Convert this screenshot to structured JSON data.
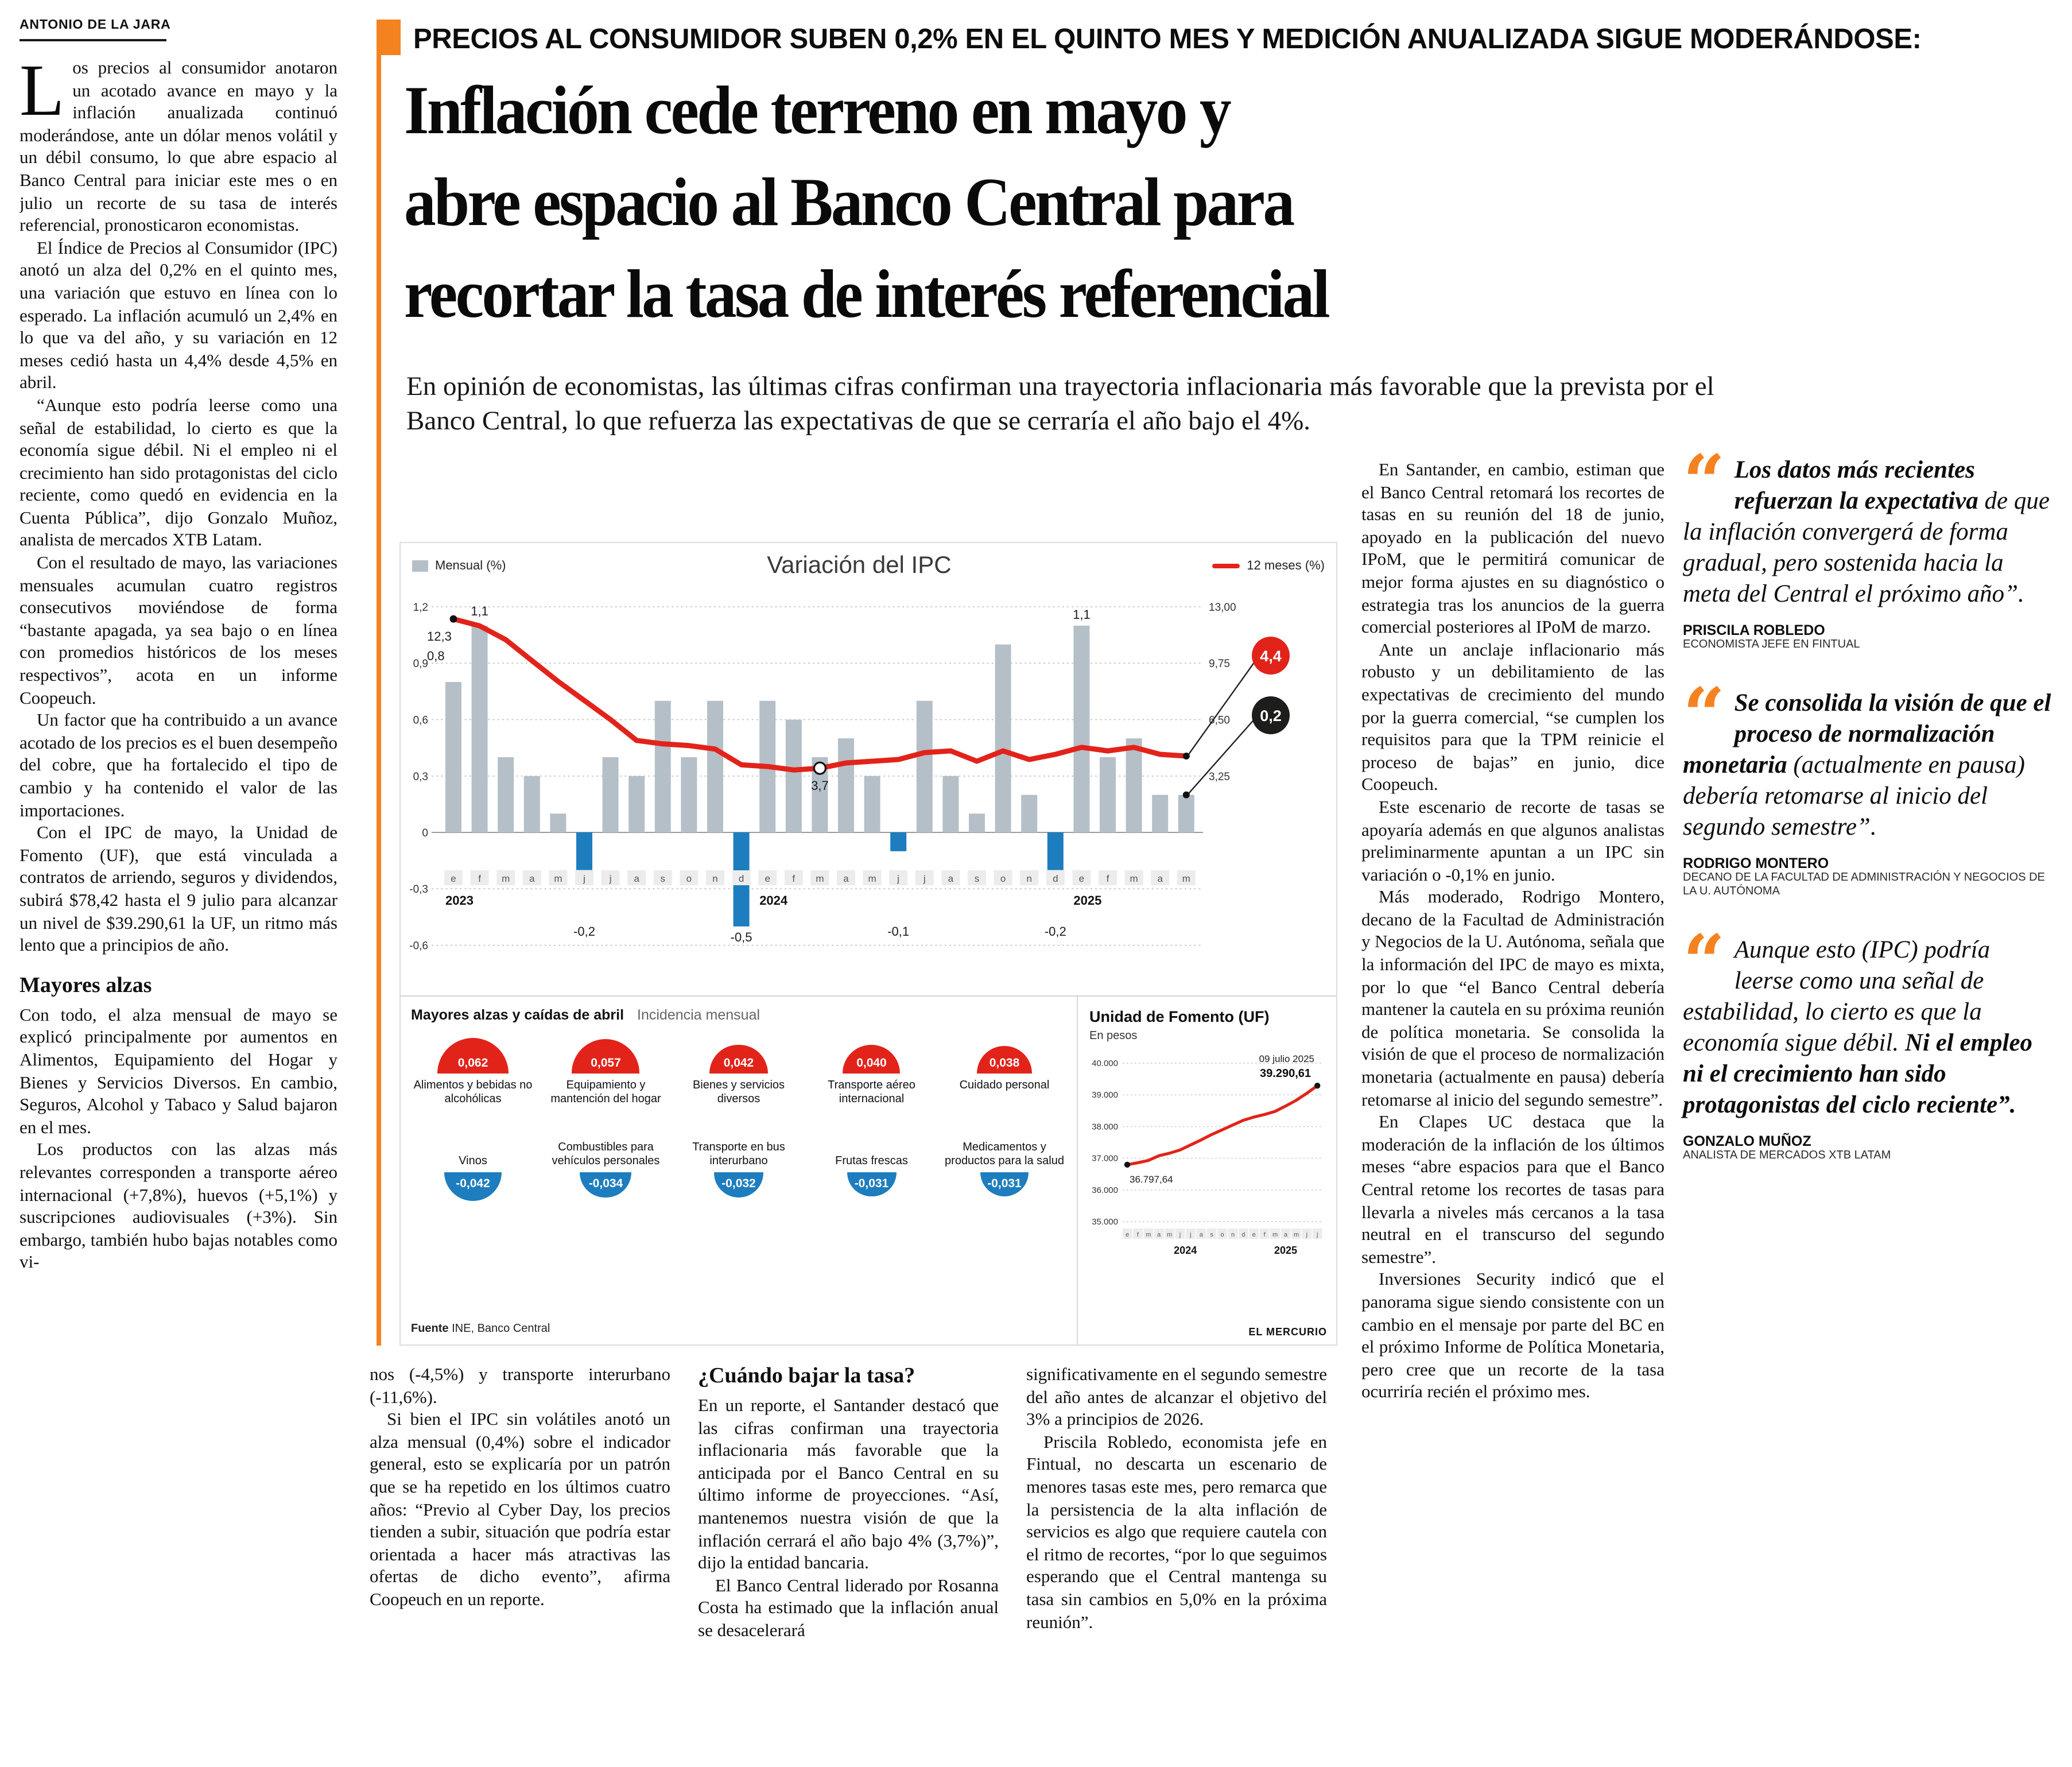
{
  "byline": "ANTONIO DE LA JARA",
  "kicker": "PRECIOS AL CONSUMIDOR SUBEN 0,2% EN EL QUINTO MES Y MEDICIÓN ANUALIZADA SIGUE MODERÁNDOSE:",
  "headline_lines": [
    "Inflación cede terreno en mayo y",
    "abre espacio al Banco Central para",
    "recortar la tasa de interés referencial"
  ],
  "dek": "En opinión de economistas, las últimas cifras confirman una trayectoria inflacionaria más favorable que la prevista por el Banco Central, lo que refuerza las expectativas de que se cerraría el año bajo el 4%.",
  "colors": {
    "accent_orange": "#f58220",
    "chart_red": "#e2231a",
    "bar_gray": "#b5bfc8",
    "negative_blue": "#1d7dbe",
    "badge_black": "#1d1d1b"
  },
  "columns": {
    "col1": [
      {
        "type": "para",
        "dropcap": "L",
        "noindent": true,
        "text": "os precios al consumidor anotaron un acotado avance en mayo y la inflación anualizada continuó moderándose, ante un dólar menos volátil y un débil consumo, lo que abre espacio al Banco Central para iniciar este mes o en julio un recorte de su tasa de interés referencial, pronosticaron economistas."
      },
      {
        "type": "para",
        "text": "El Índice de Precios al Consumidor (IPC) anotó un alza del 0,2% en el quinto mes, una variación que estuvo en línea con lo esperado. La inflación acumuló un 2,4% en lo que va del año, y su variación en 12 meses cedió hasta un 4,4% desde 4,5% en abril."
      },
      {
        "type": "para",
        "text": "“Aunque esto podría leerse como una señal de estabilidad, lo cierto es que la economía sigue débil. Ni el empleo ni el crecimiento han sido protagonistas del ciclo reciente, como quedó en evidencia en la Cuenta Pública”, dijo Gonzalo Muñoz, analista de mercados XTB Latam."
      },
      {
        "type": "para",
        "text": "Con el resultado de mayo, las variaciones mensuales acumulan cuatro registros consecutivos moviéndose de forma “bastante apagada, ya sea bajo o en línea con promedios históricos de los meses respectivos”, acota en un informe Coopeuch."
      },
      {
        "type": "para",
        "text": "Un factor que ha contribuido a un avance acotado de los precios es el buen desempeño del cobre, que ha fortalecido el tipo de cambio y ha contenido el valor de las importaciones."
      },
      {
        "type": "para",
        "text": "Con el IPC de mayo, la Unidad de Fomento (UF), que está vinculada a contratos de arriendo, seguros y dividendos, subirá $78,42 hasta el 9 julio para alcanzar un nivel de $39.290,61 la UF, un ritmo más lento que a principios de año."
      },
      {
        "type": "subhead",
        "text": "Mayores alzas"
      },
      {
        "type": "para",
        "noindent": true,
        "text": "Con todo, el alza mensual de mayo se explicó principalmente por aumentos en Alimentos, Equipamiento del Hogar y Bienes y Servicios Diversos. En cambio, Seguros, Alcohol y Tabaco y Salud bajaron en el mes."
      },
      {
        "type": "para",
        "text": "Los productos con las alzas más relevantes corresponden a transporte aéreo internacional (+7,8%), huevos (+5,1%) y suscripciones audiovisuales (+3%). Sin embargo, también hubo bajas notables como vi-"
      }
    ],
    "colB": [
      {
        "type": "para",
        "noindent": true,
        "text": "nos (-4,5%) y transporte interurbano (-11,6%)."
      },
      {
        "type": "para",
        "text": "Si bien el IPC sin volátiles anotó un alza mensual (0,4%) sobre el indicador general, esto se explicaría por un patrón que se ha repetido en los últimos cuatro años: “Previo al Cyber Day, los precios tienden a subir, situación que podría estar orientada a hacer más atractivas las ofertas de dicho evento”, afirma Coopeuch en un reporte."
      }
    ],
    "colC": [
      {
        "type": "subhead",
        "text": "¿Cuándo bajar la tasa?"
      },
      {
        "type": "para",
        "noindent": true,
        "text": "En un reporte, el Santander destacó que las cifras confirman una trayectoria inflacionaria más favorable que la anticipada por el Banco Central en su último informe de proyecciones. “Así, mantenemos nuestra visión de que la inflación cerrará el año bajo 4% (3,7%)”, dijo la entidad bancaria."
      },
      {
        "type": "para",
        "text": "El Banco Central liderado por Rosanna Costa ha estimado que la inflación anual se desacelerará"
      }
    ],
    "colD": [
      {
        "type": "para",
        "noindent": true,
        "text": "significativamente en el segundo semestre del año antes de alcanzar el objetivo del 3% a principios de 2026."
      },
      {
        "type": "para",
        "text": "Priscila Robledo, economista jefe en Fintual, no descarta un escenario de menores tasas este mes, pero remarca que la persistencia de la alta inflación de servicios es algo que requiere cautela con el ritmo de recortes, “por lo que seguimos esperando que el Central mantenga su tasa sin cambios en 5,0% en la próxima reunión”."
      }
    ],
    "col5": [
      {
        "type": "para",
        "text": "En Santander, en cambio, estiman que el Banco Central retomará los recortes de tasas en su reunión del 18 de junio, apoyado en la publicación del nuevo IPoM, que le permitirá comunicar de mejor forma ajustes en su diagnóstico o estrategia tras los anuncios de la guerra comercial posteriores al IPoM de marzo."
      },
      {
        "type": "para",
        "text": "Ante un anclaje inflacionario más robusto y un debilitamiento de las expectativas de crecimiento del mundo por la guerra comercial, “se cumplen los requisitos para que la TPM reinicie el proceso de bajas” en junio, dice Coopeuch."
      },
      {
        "type": "para",
        "text": "Este escenario de recorte de tasas se apoyaría además en que algunos analistas preliminarmente apuntan a un IPC sin variación o -0,1% en junio."
      },
      {
        "type": "para",
        "text": "Más moderado, Rodrigo Montero, decano de la Facultad de Administración y Negocios de la U. Autónoma, señala que la información del IPC de mayo es mixta, por lo que “el Banco Central debería mantener la cautela en su próxima reunión de política monetaria. Se consolida la visión de que el proceso de normalización monetaria (actualmente en pausa) debería retomarse al inicio del segundo semestre”."
      },
      {
        "type": "para",
        "text": "En Clapes UC destaca que la moderación de la inflación de los últimos meses “abre espacios para que el Banco Central retome los recortes de tasas para llevarla a niveles más cercanos a la tasa neutral en el transcurso del segundo semestre”."
      },
      {
        "type": "para",
        "text": "Inversiones Security indicó que el panorama sigue siendo consistente con un cambio en el mensaje por parte del BC en el próximo Informe de Política Monetaria, pero cree que un recorte de la tasa ocurriría recién el próximo mes."
      }
    ]
  },
  "quotes": [
    {
      "parts": [
        {
          "text": "Los datos más recientes refuerzan la expectativa ",
          "bold": true
        },
        {
          "text": "de que la inflación convergerá de forma gradual, pero sostenida hacia la meta del Central el próximo año”.",
          "bold": false
        }
      ],
      "name": "PRISCILA ROBLEDO",
      "title": "ECONOMISTA JEFE EN FINTUAL"
    },
    {
      "parts": [
        {
          "text": "Se consolida la visión de que el proceso de normalización monetaria ",
          "bold": true
        },
        {
          "text": "(actualmente en pausa) debería retomarse al inicio del segundo semestre”.",
          "bold": false
        }
      ],
      "name": "RODRIGO MONTERO",
      "title": "DECANO DE LA FACULTAD DE ADMINISTRACIÓN Y NEGOCIOS DE LA U. AUTÓNOMA"
    },
    {
      "parts": [
        {
          "text": "Aunque esto (IPC) podría leerse como una señal de estabilidad, lo cierto es que la economía sigue débil. ",
          "bold": false
        },
        {
          "text": "Ni el empleo ni el crecimiento han sido protagonistas del ciclo reciente”.",
          "bold": true
        }
      ],
      "name": "GONZALO MUÑOZ",
      "title": "ANALISTA DE MERCADOS XTB LATAM"
    }
  ],
  "chart_data": [
    {
      "type": "bar",
      "title": "Variación del IPC",
      "legend": [
        {
          "label": "Mensual (%)",
          "color": "#b5bfc8"
        },
        {
          "label": "12 meses (%)",
          "color": "#e2231a"
        }
      ],
      "left_axis": {
        "ticks": [
          "1,2",
          "0,9",
          "0,6",
          "0,3",
          "0",
          "-0,3",
          "-0,6"
        ],
        "min": -0.6,
        "max": 1.2
      },
      "right_axis": {
        "ticks": [
          "13,00",
          "9,75",
          "6,50",
          "3,25"
        ],
        "min": 3.25,
        "max": 13.0
      },
      "months": [
        "e",
        "f",
        "m",
        "a",
        "m",
        "j",
        "j",
        "a",
        "s",
        "o",
        "n",
        "d",
        "e",
        "f",
        "m",
        "a",
        "m",
        "j",
        "j",
        "a",
        "s",
        "o",
        "n",
        "d",
        "e",
        "f",
        "m",
        "a",
        "m"
      ],
      "years": [
        {
          "label": "2023",
          "start": 0
        },
        {
          "label": "2024",
          "start": 12
        },
        {
          "label": "2025",
          "start": 24
        }
      ],
      "monthly": [
        0.8,
        1.1,
        0.4,
        0.3,
        0.1,
        -0.2,
        0.4,
        0.3,
        0.7,
        0.4,
        0.7,
        -0.5,
        0.7,
        0.6,
        0.4,
        0.5,
        0.3,
        -0.1,
        0.7,
        0.3,
        0.1,
        1.0,
        0.2,
        -0.2,
        1.1,
        0.4,
        0.5,
        0.2,
        0.2
      ],
      "twelve_month": [
        12.3,
        11.9,
        11.1,
        9.9,
        8.7,
        7.6,
        6.5,
        5.3,
        5.1,
        5.0,
        4.8,
        3.9,
        3.8,
        3.6,
        3.7,
        4.0,
        4.1,
        4.2,
        4.6,
        4.7,
        4.1,
        4.7,
        4.2,
        4.5,
        4.9,
        4.7,
        4.9,
        4.5,
        4.4
      ],
      "bar_labels": [
        {
          "index": 0,
          "text": "0,8"
        },
        {
          "index": 1,
          "text": "1,1"
        },
        {
          "index": 5,
          "text": "-0,2"
        },
        {
          "index": 11,
          "text": "-0,5"
        },
        {
          "index": 17,
          "text": "-0,1"
        },
        {
          "index": 23,
          "text": "-0,2"
        },
        {
          "index": 24,
          "text": "1,1"
        }
      ],
      "line_labels": [
        {
          "index": 0,
          "text": "12,3"
        },
        {
          "index": 14,
          "text": "3,7"
        }
      ],
      "badges": [
        {
          "text": "4,4",
          "color": "#e2231a"
        },
        {
          "text": "0,2",
          "color": "#1d1d1b"
        }
      ],
      "bar_color": "#b5bfc8",
      "negative_color": "#1d7dbe",
      "line_color": "#e2231a"
    },
    {
      "type": "line",
      "title": "Unidad de Fomento (UF)",
      "subtitle": "En pesos",
      "date_label": "09 julio 2025",
      "end_label": "39.290,61",
      "start_label": "36.797,64",
      "y_ticks": [
        "40.000",
        "39.000",
        "38.000",
        "37.000",
        "36.000",
        "35.000"
      ],
      "ylim": [
        35000,
        40000
      ],
      "months": [
        "e",
        "f",
        "m",
        "a",
        "m",
        "j",
        "j",
        "a",
        "s",
        "o",
        "n",
        "d",
        "e",
        "f",
        "m",
        "a",
        "m",
        "j",
        "j"
      ],
      "years": [
        "2024",
        "2025"
      ],
      "values": [
        36797.64,
        36860,
        36930,
        37080,
        37160,
        37260,
        37420,
        37580,
        37750,
        37900,
        38050,
        38200,
        38300,
        38380,
        38480,
        38650,
        38830,
        39050,
        39290.61
      ],
      "line_color": "#e2231a"
    },
    {
      "type": "pictogram",
      "title": "Mayores alzas y caídas de abril",
      "subtitle": "Incidencia mensual",
      "alzas": [
        {
          "label": "Alimentos y bebidas no alcohólicas",
          "display": "0,062",
          "value": 0.062
        },
        {
          "label": "Equipamiento y mantención del hogar",
          "display": "0,057",
          "value": 0.057
        },
        {
          "label": "Bienes y servicios diversos",
          "display": "0,042",
          "value": 0.042
        },
        {
          "label": "Transporte aéreo internacional",
          "display": "0,040",
          "value": 0.04
        },
        {
          "label": "Cuidado personal",
          "display": "0,038",
          "value": 0.038
        }
      ],
      "caidas": [
        {
          "label": "Vinos",
          "display": "-0,042",
          "value": -0.042
        },
        {
          "label": "Combustibles para vehículos personales",
          "display": "-0,034",
          "value": -0.034
        },
        {
          "label": "Transporte en bus interurbano",
          "display": "-0,032",
          "value": -0.032
        },
        {
          "label": "Frutas frescas",
          "display": "-0,031",
          "value": -0.031
        },
        {
          "label": "Medicamentos y productos para la salud",
          "display": "-0,031",
          "value": -0.031
        }
      ],
      "source_bold": "Fuente",
      "source_rest": " INE, Banco Central",
      "credit": "EL MERCURIO"
    }
  ]
}
